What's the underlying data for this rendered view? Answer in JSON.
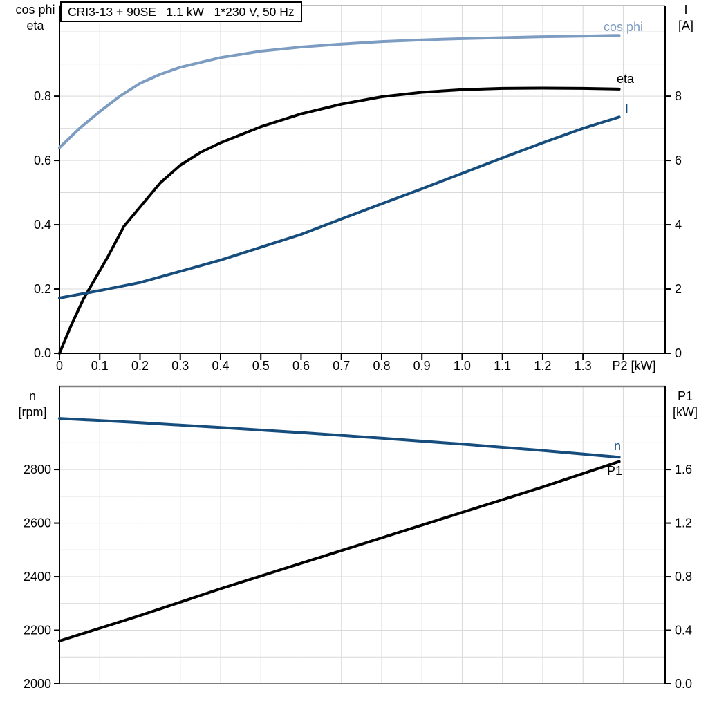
{
  "title": "CRI3-13 + 90SE   1.1 kW   1*230 V, 50 Hz",
  "colors": {
    "light_blue": "#7d9cc1",
    "dark_blue": "#164d7d",
    "black": "#000000",
    "grid": "#d9d9d9",
    "frame_gray": "#808080",
    "background": "#ffffff"
  },
  "chart_data": [
    {
      "type": "line",
      "title": "CRI3-13 + 90SE   1.1 kW   1*230 V, 50 Hz",
      "xlabel": "P2 [kW]",
      "left_axis_label": [
        "cos phi",
        "eta"
      ],
      "right_axis_label": [
        "I",
        "[A]"
      ],
      "xlim": [
        0,
        1.504
      ],
      "left_ylim": [
        0,
        1.082
      ],
      "right_ylim": [
        0,
        10.82
      ],
      "grid_on": true,
      "legend_position": "end-of-curve",
      "x_ticks": {
        "values": [
          0,
          0.1,
          0.2,
          0.3,
          0.4,
          0.5,
          0.6,
          0.7,
          0.8,
          0.9,
          1.0,
          1.1,
          1.2,
          1.3
        ],
        "labels": [
          "0",
          "0.1",
          "0.2",
          "0.3",
          "0.4",
          "0.5",
          "0.6",
          "0.7",
          "0.8",
          "0.9",
          "1.0",
          "1.1",
          "1.2",
          "1.3"
        ]
      },
      "left_ticks": {
        "values": [
          0,
          0.2,
          0.4,
          0.6,
          0.8
        ],
        "labels": [
          "0.0",
          "0.2",
          "0.4",
          "0.6",
          "0.8"
        ]
      },
      "right_ticks": {
        "values": [
          0,
          2,
          4,
          6,
          8
        ],
        "labels": [
          "0",
          "2",
          "4",
          "6",
          "8"
        ]
      },
      "grid": {
        "x_step": 0.1,
        "y_step_left": 0.1
      },
      "series": [
        {
          "name": "cos phi",
          "axis": "left",
          "color": "#7d9cc1",
          "x": [
            0,
            0.05,
            0.1,
            0.15,
            0.2,
            0.25,
            0.3,
            0.4,
            0.5,
            0.6,
            0.7,
            0.8,
            0.9,
            1.0,
            1.1,
            1.2,
            1.3,
            1.39
          ],
          "y": [
            0.64,
            0.7,
            0.752,
            0.8,
            0.84,
            0.868,
            0.89,
            0.92,
            0.94,
            0.953,
            0.962,
            0.97,
            0.975,
            0.979,
            0.982,
            0.985,
            0.987,
            0.989
          ]
        },
        {
          "name": "eta",
          "axis": "left",
          "color": "#000000",
          "x": [
            0,
            0.03,
            0.06,
            0.09,
            0.12,
            0.16,
            0.2,
            0.25,
            0.3,
            0.35,
            0.4,
            0.5,
            0.6,
            0.7,
            0.8,
            0.9,
            1.0,
            1.1,
            1.2,
            1.3,
            1.39
          ],
          "y": [
            0,
            0.09,
            0.17,
            0.235,
            0.3,
            0.395,
            0.455,
            0.53,
            0.585,
            0.625,
            0.655,
            0.705,
            0.745,
            0.775,
            0.798,
            0.812,
            0.82,
            0.824,
            0.825,
            0.824,
            0.822
          ]
        },
        {
          "name": "I",
          "axis": "right",
          "color": "#164d7d",
          "x": [
            0,
            0.1,
            0.2,
            0.3,
            0.4,
            0.5,
            0.6,
            0.7,
            0.8,
            0.9,
            1.0,
            1.1,
            1.2,
            1.3,
            1.39
          ],
          "y": [
            1.72,
            1.95,
            2.2,
            2.55,
            2.9,
            3.3,
            3.7,
            4.18,
            4.65,
            5.12,
            5.6,
            6.08,
            6.55,
            7.0,
            7.35
          ]
        }
      ]
    },
    {
      "type": "line",
      "title": "",
      "xlabel": "",
      "left_axis_label": [
        "n",
        "[rpm]"
      ],
      "right_axis_label": [
        "P1",
        "[kW]"
      ],
      "xlim": [
        0,
        1.504
      ],
      "left_ylim": [
        2000,
        3110
      ],
      "right_ylim": [
        0,
        2.22
      ],
      "grid_on": true,
      "legend_position": "end-of-curve",
      "x_ticks": {
        "values": [],
        "labels": []
      },
      "left_ticks": {
        "values": [
          2000,
          2200,
          2400,
          2600,
          2800
        ],
        "labels": [
          "2000",
          "2200",
          "2400",
          "2600",
          "2800"
        ]
      },
      "right_ticks": {
        "values": [
          0,
          0.4,
          0.8,
          1.2,
          1.6
        ],
        "labels": [
          "0.0",
          "0.4",
          "0.8",
          "1.2",
          "1.6"
        ]
      },
      "grid": {
        "x_step": 0.1,
        "y_step_left": 100
      },
      "series": [
        {
          "name": "n",
          "axis": "left",
          "color": "#164d7d",
          "x": [
            0,
            0.2,
            0.4,
            0.6,
            0.8,
            1.0,
            1.2,
            1.39
          ],
          "y": [
            2991,
            2975,
            2957,
            2938,
            2917,
            2895,
            2871,
            2846
          ]
        },
        {
          "name": "P1",
          "axis": "right",
          "color": "#000000",
          "x": [
            0,
            0.2,
            0.4,
            0.6,
            0.8,
            1.0,
            1.2,
            1.39
          ],
          "y": [
            0.32,
            0.51,
            0.71,
            0.9,
            1.09,
            1.28,
            1.47,
            1.66
          ]
        }
      ]
    }
  ]
}
